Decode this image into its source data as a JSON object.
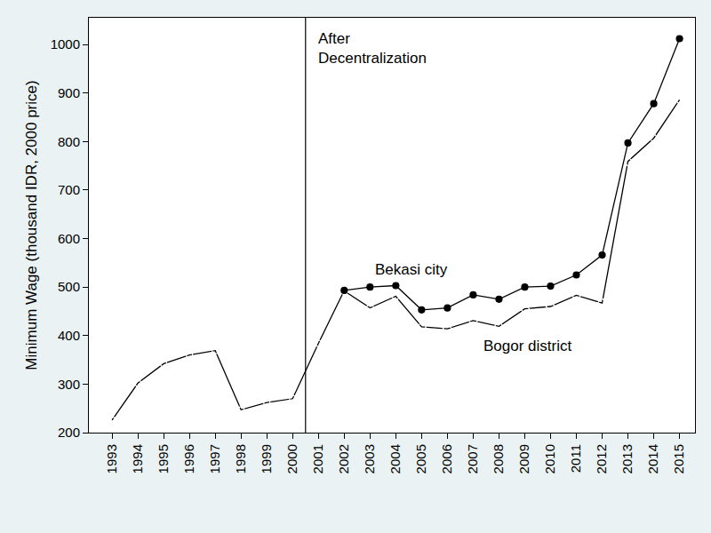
{
  "chart_data": {
    "type": "line",
    "x": [
      1993,
      1994,
      1995,
      1996,
      1997,
      1998,
      1999,
      2000,
      2001,
      2002,
      2003,
      2004,
      2005,
      2006,
      2007,
      2008,
      2009,
      2010,
      2011,
      2012,
      2013,
      2014,
      2015
    ],
    "xlim": [
      1992.1,
      2015.6
    ],
    "xticks": [
      1993,
      1994,
      1995,
      1996,
      1997,
      1998,
      1999,
      2000,
      2001,
      2002,
      2003,
      2004,
      2005,
      2006,
      2007,
      2008,
      2009,
      2010,
      2011,
      2012,
      2013,
      2014,
      2015
    ],
    "ylim": [
      200,
      1055
    ],
    "yticks": [
      200,
      300,
      400,
      500,
      600,
      700,
      800,
      900,
      1000
    ],
    "y_label": "Minimum Wage (thousand IDR, 2000 price)",
    "grid": false,
    "vertical_line": {
      "x": 2000.5,
      "text": [
        "After",
        "Decentralization"
      ]
    },
    "series": [
      {
        "color": "#000000",
        "marker": "circle-open",
        "line_style": "solid",
        "values": [
          226,
          302,
          342,
          360,
          369,
          247,
          262,
          270,
          384,
          493,
          null,
          null,
          null,
          null,
          null,
          null,
          null,
          null,
          null,
          null,
          null,
          null,
          null
        ]
      },
      {
        "name": "Bogor district",
        "color": "#000000",
        "marker": "diamond-open",
        "line_style": "solid",
        "label_at": {
          "x": 2009.1,
          "y": 378
        },
        "values": [
          null,
          null,
          null,
          null,
          null,
          null,
          null,
          null,
          null,
          492,
          457,
          481,
          418,
          414,
          431,
          419,
          455,
          460,
          483,
          467,
          759,
          807,
          886
        ]
      },
      {
        "name": "Bekasi city",
        "color": "#000000",
        "marker": "circle",
        "line_style": "solid",
        "label_at": {
          "x": 2004.6,
          "y": 536
        },
        "values": [
          null,
          null,
          null,
          null,
          null,
          null,
          null,
          null,
          null,
          493,
          500,
          503,
          453,
          457,
          484,
          475,
          500,
          502,
          525,
          566,
          797,
          878,
          1012
        ]
      }
    ]
  }
}
